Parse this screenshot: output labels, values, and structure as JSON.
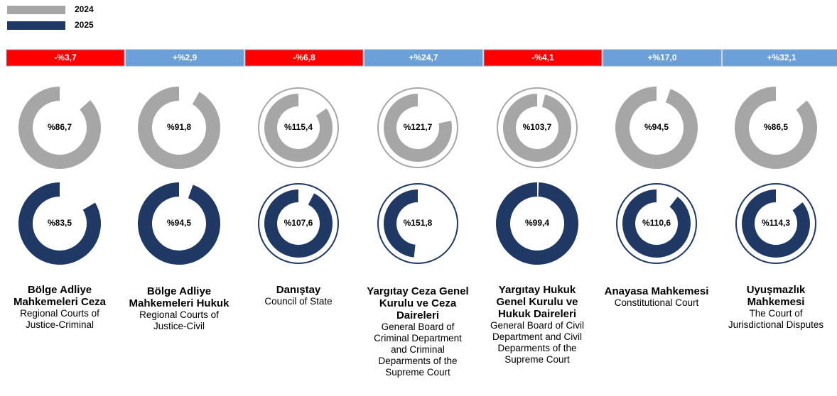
{
  "chart_data": {
    "type": "donut",
    "series": [
      {
        "name": "2024",
        "color": "#a6a6a6",
        "values": [
          86.7,
          91.8,
          115.4,
          121.7,
          103.7,
          94.5,
          86.5
        ],
        "value_labels": [
          "%86,7",
          "%91,8",
          "%115,4",
          "%121,7",
          "%103,7",
          "%94,5",
          "%86,5"
        ]
      },
      {
        "name": "2025",
        "color": "#1f3864",
        "values": [
          83.5,
          94.5,
          107.6,
          151.8,
          99.4,
          110.6,
          114.3
        ],
        "value_labels": [
          "%83,5",
          "%94,5",
          "%107,6",
          "%151,8",
          "%99,4",
          "%110,6",
          "%114,3"
        ]
      }
    ],
    "changes": [
      -3.7,
      2.9,
      -6.8,
      24.7,
      -4.1,
      17.0,
      32.1
    ],
    "change_labels": [
      "-%3,7",
      "+%2,9",
      "-%6,8",
      "+%24,7",
      "-%4,1",
      "+%17,0",
      "+%32,1"
    ],
    "change_colors": {
      "negative": "#ff0000",
      "positive": "#6a9fd8"
    },
    "categories": [
      "Bölge Adliye Mahkemeleri Ceza",
      "Bölge Adliye Mahkemeleri Hukuk",
      "Danıştay",
      "Yargıtay Ceza Genel Kurulu ve Ceza Daireleri",
      "Yargıtay Hukuk Genel Kurulu ve Hukuk Daireleri",
      "Anayasa Mahkemesi",
      "Uyuşmazlık Mahkemesi"
    ],
    "subtitles": [
      "Regional Courts of Justice-Criminal",
      "Regional Courts of Justice-Civil",
      "Council of State",
      "General Board of Criminal Department and Criminal Deparments of the Supreme Court",
      "General Board of Civil Department and Civil Deparments of the Supreme Court",
      "Constitutional Court",
      "The Court of Jurisdictional Disputes"
    ]
  }
}
